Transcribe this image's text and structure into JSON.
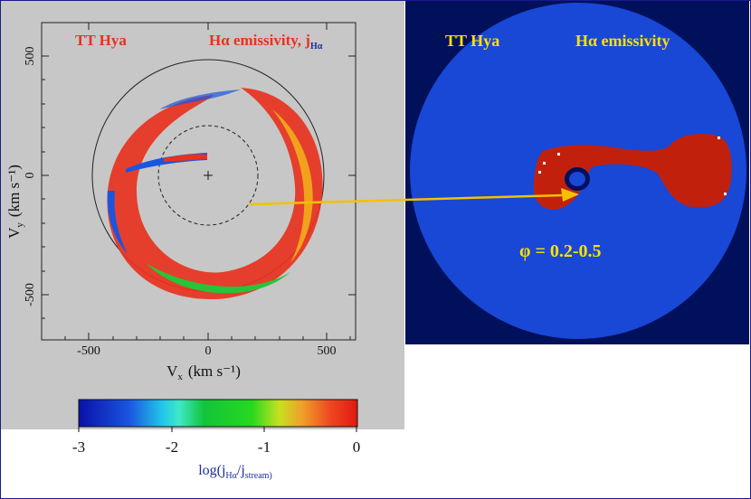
{
  "left": {
    "star_name": "TT Hya",
    "emissivity_title": "Hα emissivity, j",
    "emissivity_sub": "Hα",
    "axis_y_label": "V",
    "axis_y_sub": "y",
    "axis_y_units": "(km s⁻¹)",
    "axis_x_label": "V",
    "axis_x_sub": "x",
    "axis_x_units": "(km s⁻¹)",
    "x_ticks": [
      "-500",
      "0",
      "500"
    ],
    "y_ticks": [
      "500",
      "0",
      "-500"
    ]
  },
  "right": {
    "star_name": "TT Hya",
    "title": "Hα emissivity",
    "phase_label": "φ = 0.2-0.5"
  },
  "colorbar": {
    "ticks": [
      "-3",
      "-2",
      "-1",
      "0"
    ],
    "label_main": "log(j",
    "label_sub1": "Hα",
    "label_mid": "/j",
    "label_sub2": "stream)"
  },
  "colors": {
    "red": "#e8321e",
    "yellow": "#ffe000",
    "disc_blue": "#1947d6",
    "stream_red": "#c1210c",
    "navy": "#00105a",
    "arrow": "#f2c200"
  }
}
